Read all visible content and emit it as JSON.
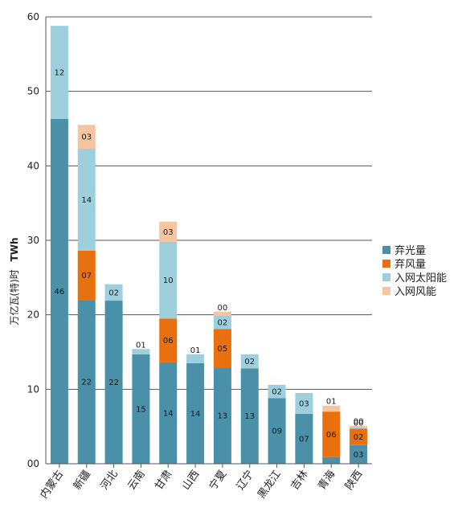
{
  "chart_data": {
    "type": "bar",
    "stacked": true,
    "ylabel": "万亿瓦(特)时",
    "ylabel_unit": "TWh",
    "ylim": [
      0,
      60
    ],
    "yticks": [
      "00",
      "10",
      "20",
      "30",
      "40",
      "50",
      "60"
    ],
    "grid": true,
    "legend_position": "right",
    "categories": [
      "内蒙古",
      "新疆",
      "河北",
      "云南",
      "甘肃",
      "山西",
      "宁夏",
      "辽宁",
      "黑龙江",
      "吉林",
      "青海",
      "陕西"
    ],
    "series": [
      {
        "name": "弃光量",
        "color": "#4a90a8",
        "values": [
          46.3,
          22.0,
          21.9,
          14.7,
          13.6,
          13.5,
          12.9,
          12.8,
          8.8,
          6.7,
          0.9,
          2.5
        ],
        "labels": [
          "46",
          "22",
          "22",
          "15",
          "14",
          "14",
          "13",
          "13",
          "09",
          "07",
          "01",
          "03"
        ]
      },
      {
        "name": "弃风量",
        "color": "#e8700f",
        "values": [
          0,
          6.6,
          0,
          0,
          5.9,
          0,
          5.2,
          0,
          0,
          0,
          6.1,
          2.2
        ],
        "labels": [
          "",
          "07",
          "",
          "",
          "06",
          "",
          "05",
          "",
          "",
          "",
          "06",
          "02"
        ]
      },
      {
        "name": "入网太阳能",
        "color": "#9dd0dc",
        "values": [
          12.5,
          13.7,
          2.2,
          0.7,
          10.3,
          1.2,
          1.8,
          1.9,
          1.8,
          2.8,
          0,
          0.2
        ],
        "labels": [
          "12",
          "14",
          "02",
          "01",
          "10",
          "01",
          "02",
          "02",
          "02",
          "03",
          "",
          "00"
        ]
      },
      {
        "name": "入网风能",
        "color": "#f5c4a0",
        "values": [
          0,
          3.2,
          0,
          0,
          2.7,
          0,
          0.5,
          0,
          0,
          0,
          0.8,
          0.2
        ],
        "labels": [
          "",
          "03",
          "",
          "",
          "03",
          "",
          "00",
          "",
          "",
          "",
          "01",
          "00"
        ]
      }
    ]
  }
}
